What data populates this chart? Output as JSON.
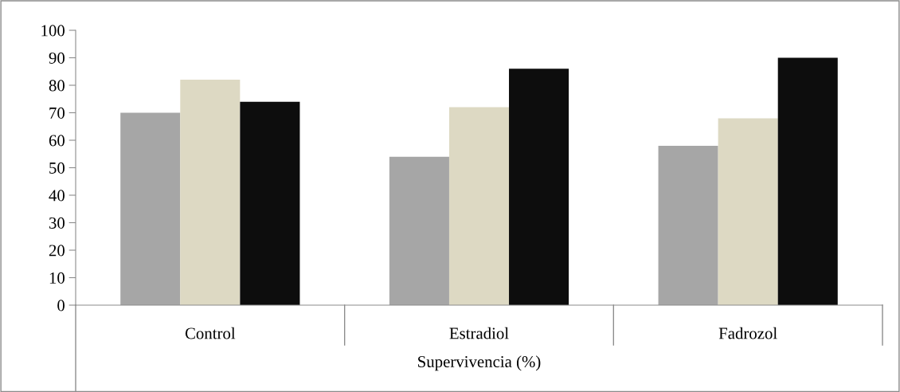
{
  "chart_data": {
    "type": "bar",
    "xlabel": "Supervivencia (%)",
    "categories": [
      "Control",
      "Estradiol",
      "Fadrozol"
    ],
    "series": [
      {
        "color": "#a6a6a6",
        "values": [
          70,
          54,
          58
        ]
      },
      {
        "color": "#ddd9c3",
        "values": [
          82,
          72,
          68
        ]
      },
      {
        "color": "#0d0d0d",
        "values": [
          74,
          86,
          90
        ]
      }
    ],
    "ylim": [
      0,
      100
    ],
    "yticks": [
      0,
      10,
      20,
      30,
      40,
      50,
      60,
      70,
      80,
      90,
      100
    ],
    "grid": false,
    "legend": false
  }
}
